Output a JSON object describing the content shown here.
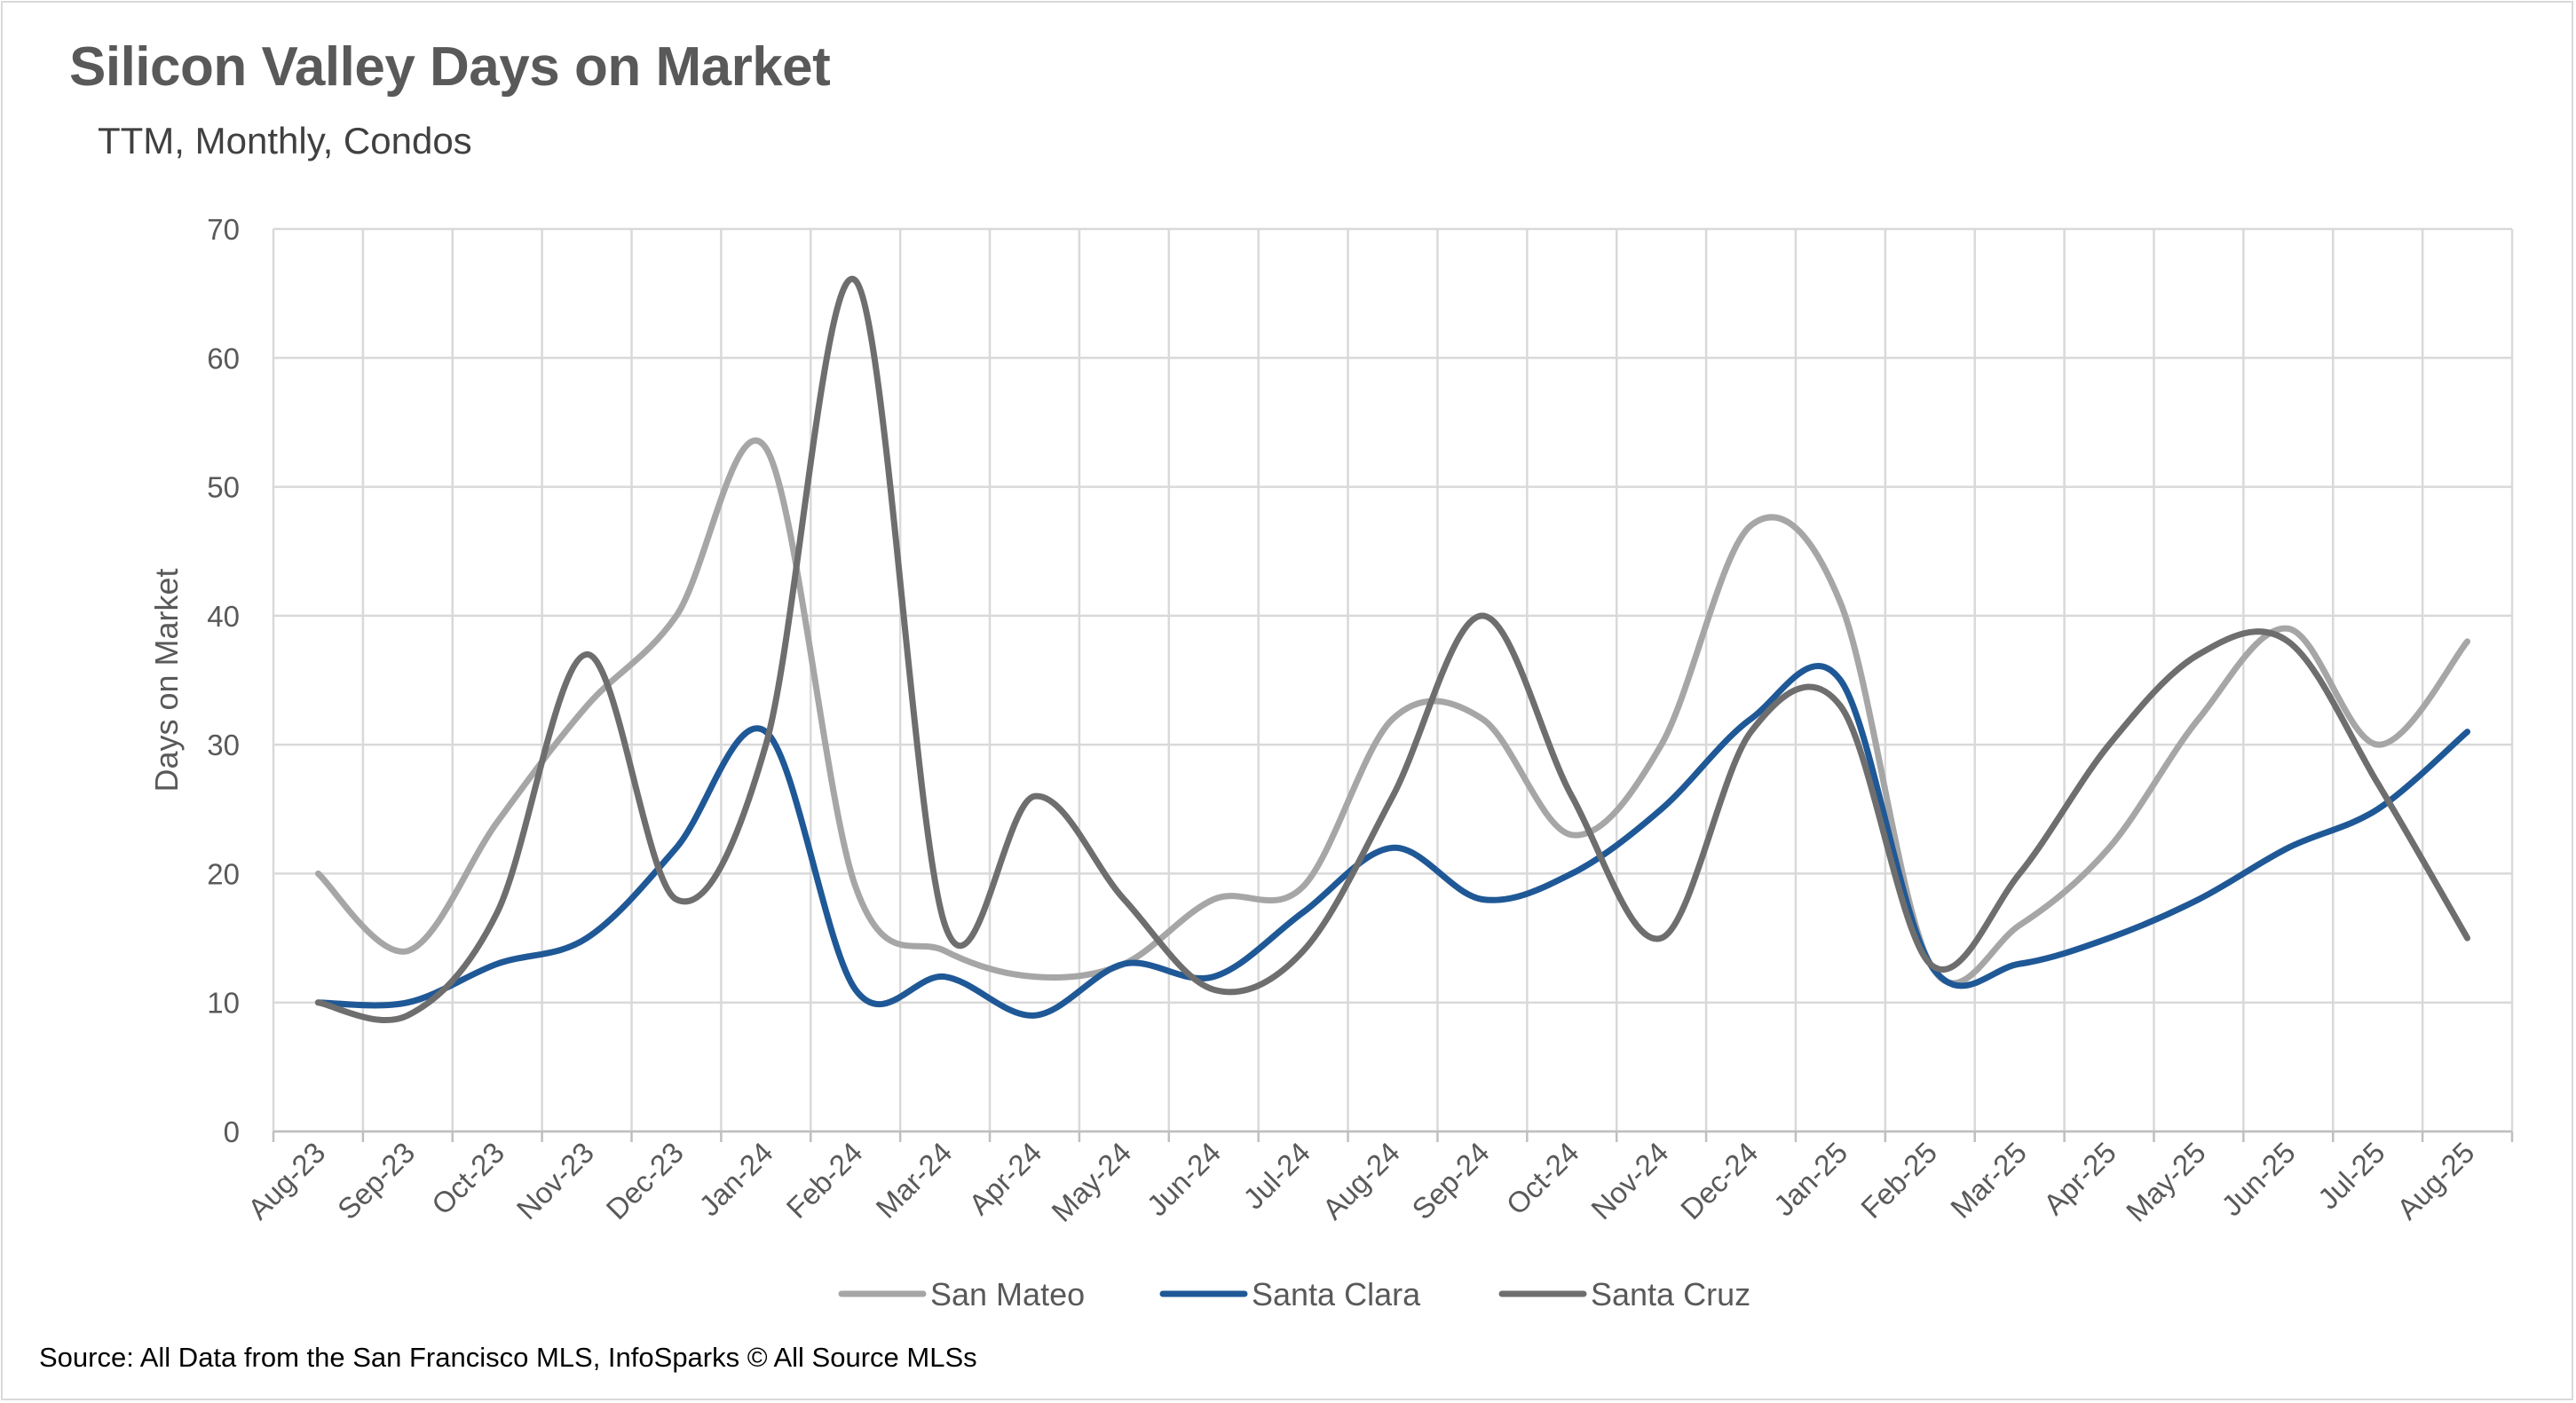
{
  "chart_data": {
    "type": "line",
    "title": "Silicon Valley Days on Market",
    "subtitle": "TTM, Monthly, Condos",
    "xlabel": "",
    "ylabel": "Days on Market",
    "ylim": [
      0,
      70
    ],
    "yticks": [
      0,
      10,
      20,
      30,
      40,
      50,
      60,
      70
    ],
    "grid": true,
    "legend_position": "bottom",
    "categories": [
      "Aug-23",
      "Sep-23",
      "Oct-23",
      "Nov-23",
      "Dec-23",
      "Jan-24",
      "Feb-24",
      "Mar-24",
      "Apr-24",
      "May-24",
      "Jun-24",
      "Jul-24",
      "Aug-24",
      "Sep-24",
      "Oct-24",
      "Nov-24",
      "Dec-24",
      "Jan-25",
      "Feb-25",
      "Mar-25",
      "Apr-25",
      "May-25",
      "Jun-25",
      "Jul-25",
      "Aug-25"
    ],
    "series": [
      {
        "name": "San Mateo",
        "color": "#a6a6a6",
        "values": [
          20,
          14,
          24,
          33,
          40,
          53,
          19,
          14,
          12,
          13,
          18,
          19,
          32,
          32,
          23,
          30,
          47,
          41,
          13,
          16,
          22,
          32,
          39,
          30,
          38
        ]
      },
      {
        "name": "Santa Clara",
        "color": "#1f5896",
        "values": [
          10,
          10,
          13,
          15,
          22,
          31,
          11,
          12,
          9,
          13,
          12,
          17,
          22,
          18,
          20,
          25,
          32,
          35,
          13,
          13,
          15,
          18,
          22,
          25,
          31
        ]
      },
      {
        "name": "Santa Cruz",
        "color": "#6e6e6e",
        "values": [
          10,
          9,
          17,
          37,
          18,
          30,
          66,
          16,
          26,
          18,
          11,
          14,
          26,
          40,
          26,
          15,
          31,
          33,
          13,
          20,
          30,
          37,
          38,
          27,
          15
        ]
      }
    ]
  },
  "source": "Source: All Data from the San Francisco MLS, InfoSparks © All Source MLSs"
}
